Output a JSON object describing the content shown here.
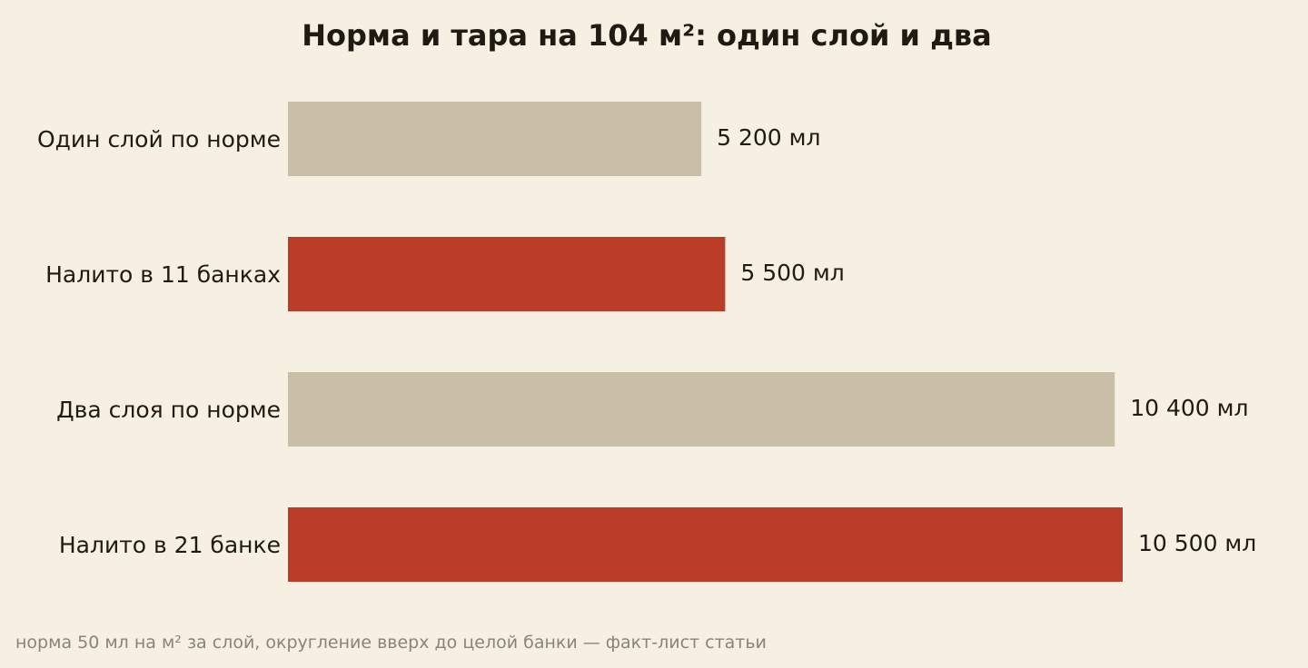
{
  "chart_data": {
    "type": "bar",
    "orientation": "horizontal",
    "title": "Норма и тара на 104 м²: один слой и два",
    "categories": [
      "Один слой по норме",
      "Налито в 11 банках",
      "Два слоя по норме",
      "Налито в 21 банке"
    ],
    "values": [
      5200,
      5500,
      10400,
      10500
    ],
    "value_labels": [
      "5 200 мл",
      "5 500 мл",
      "10 400 мл",
      "10 500 мл"
    ],
    "bar_colors": [
      "#c9bfa7",
      "#bc3d27",
      "#c9bfa7",
      "#bc3d27"
    ],
    "xlim": [
      0,
      10500
    ],
    "grid": false,
    "legend": "none",
    "footnote": "норма 50 мл на м² за слой, округление вверх до целой банки — факт-лист статьи"
  }
}
